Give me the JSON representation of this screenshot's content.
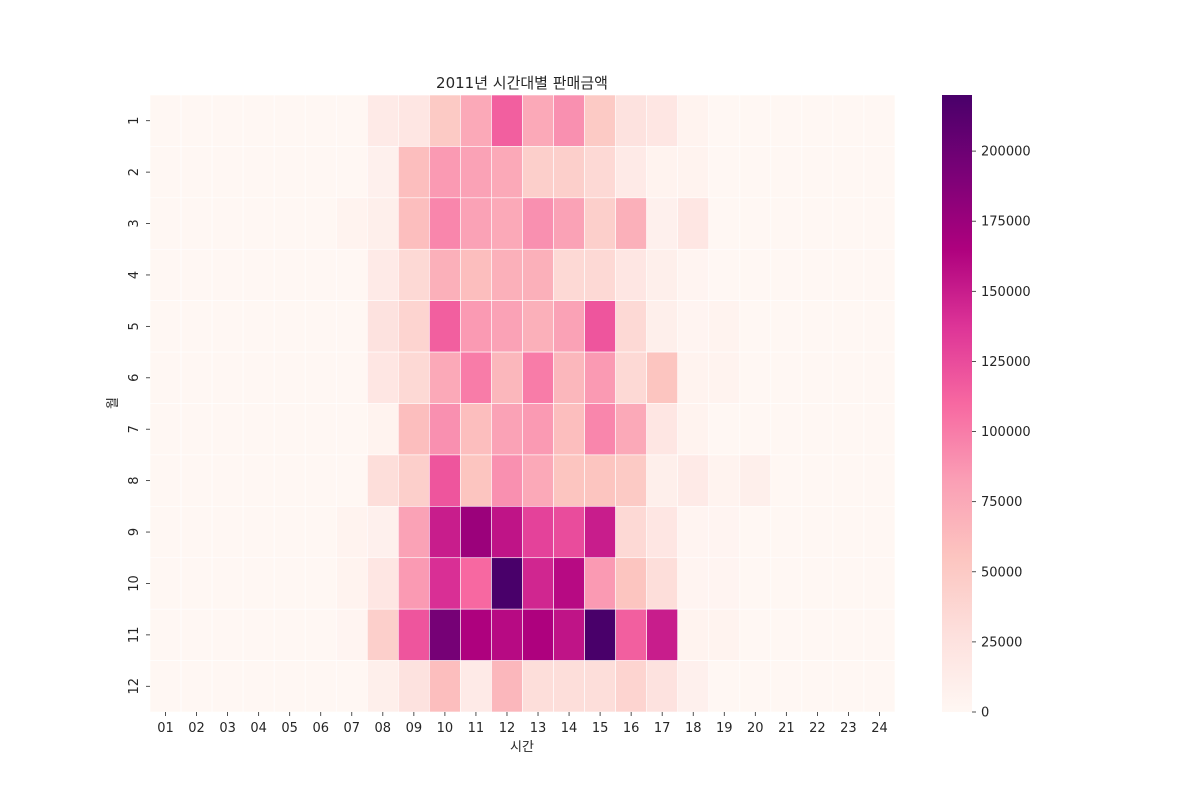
{
  "chart_data": {
    "type": "heatmap",
    "title": "2011년 시간대별 판매금액",
    "xlabel": "시간",
    "ylabel": "월",
    "x_categories": [
      "01",
      "02",
      "03",
      "04",
      "05",
      "06",
      "07",
      "08",
      "09",
      "10",
      "11",
      "12",
      "13",
      "14",
      "15",
      "16",
      "17",
      "18",
      "19",
      "20",
      "21",
      "22",
      "23",
      "24"
    ],
    "y_categories": [
      "1",
      "2",
      "3",
      "4",
      "5",
      "6",
      "7",
      "8",
      "9",
      "10",
      "11",
      "12"
    ],
    "values": [
      [
        0,
        0,
        0,
        0,
        0,
        0,
        0,
        15000,
        20000,
        50000,
        75000,
        115000,
        75000,
        90000,
        50000,
        25000,
        20000,
        5000,
        0,
        0,
        0,
        0,
        0,
        0
      ],
      [
        0,
        0,
        0,
        0,
        0,
        0,
        0,
        8000,
        60000,
        85000,
        80000,
        75000,
        45000,
        45000,
        35000,
        15000,
        5000,
        5000,
        0,
        0,
        0,
        0,
        0,
        0
      ],
      [
        0,
        0,
        0,
        0,
        0,
        0,
        5000,
        10000,
        60000,
        95000,
        80000,
        75000,
        90000,
        80000,
        45000,
        70000,
        8000,
        20000,
        0,
        0,
        0,
        0,
        0,
        0
      ],
      [
        0,
        0,
        0,
        0,
        0,
        0,
        0,
        15000,
        35000,
        70000,
        60000,
        70000,
        70000,
        35000,
        35000,
        20000,
        10000,
        3000,
        0,
        0,
        0,
        0,
        0,
        0
      ],
      [
        0,
        0,
        0,
        0,
        0,
        0,
        0,
        25000,
        40000,
        115000,
        85000,
        80000,
        70000,
        80000,
        120000,
        35000,
        10000,
        3000,
        5000,
        0,
        0,
        0,
        0,
        0
      ],
      [
        0,
        0,
        0,
        0,
        0,
        0,
        0,
        20000,
        35000,
        75000,
        100000,
        65000,
        100000,
        65000,
        85000,
        35000,
        55000,
        5000,
        5000,
        0,
        0,
        0,
        0,
        0
      ],
      [
        0,
        0,
        0,
        0,
        0,
        0,
        0,
        5000,
        60000,
        90000,
        60000,
        80000,
        85000,
        60000,
        95000,
        75000,
        20000,
        5000,
        0,
        0,
        0,
        0,
        0,
        0
      ],
      [
        0,
        0,
        0,
        0,
        0,
        0,
        0,
        30000,
        45000,
        120000,
        55000,
        90000,
        75000,
        55000,
        55000,
        50000,
        10000,
        15000,
        5000,
        10000,
        0,
        0,
        0,
        0
      ],
      [
        0,
        0,
        0,
        0,
        0,
        0,
        5000,
        8000,
        80000,
        150000,
        175000,
        155000,
        130000,
        125000,
        150000,
        35000,
        20000,
        3000,
        3000,
        0,
        0,
        0,
        0,
        0
      ],
      [
        0,
        0,
        0,
        0,
        0,
        0,
        5000,
        20000,
        85000,
        140000,
        110000,
        220000,
        145000,
        160000,
        85000,
        55000,
        30000,
        3000,
        3000,
        0,
        0,
        0,
        0,
        0
      ],
      [
        0,
        0,
        0,
        0,
        0,
        0,
        3000,
        45000,
        120000,
        195000,
        165000,
        160000,
        165000,
        155000,
        220000,
        115000,
        150000,
        5000,
        5000,
        0,
        0,
        0,
        0,
        0
      ],
      [
        0,
        0,
        0,
        0,
        0,
        0,
        0,
        10000,
        25000,
        60000,
        15000,
        65000,
        30000,
        30000,
        30000,
        40000,
        25000,
        8000,
        0,
        0,
        0,
        0,
        0,
        0
      ]
    ],
    "vmin": 0,
    "vmax": 220000,
    "colormap": "RdPu",
    "colormap_stops": [
      "#fff7f3",
      "#fde0dd",
      "#fcc5c0",
      "#fa9fb5",
      "#f768a1",
      "#dd3497",
      "#ae017e",
      "#7a0177",
      "#49006a"
    ],
    "colorbar_ticks": [
      0,
      25000,
      50000,
      75000,
      100000,
      125000,
      150000,
      175000,
      200000
    ],
    "colorbar_tick_labels": [
      "0",
      "25000",
      "50000",
      "75000",
      "100000",
      "125000",
      "150000",
      "175000",
      "200000"
    ],
    "grid": true,
    "cell_border_color": "#ffffff"
  }
}
